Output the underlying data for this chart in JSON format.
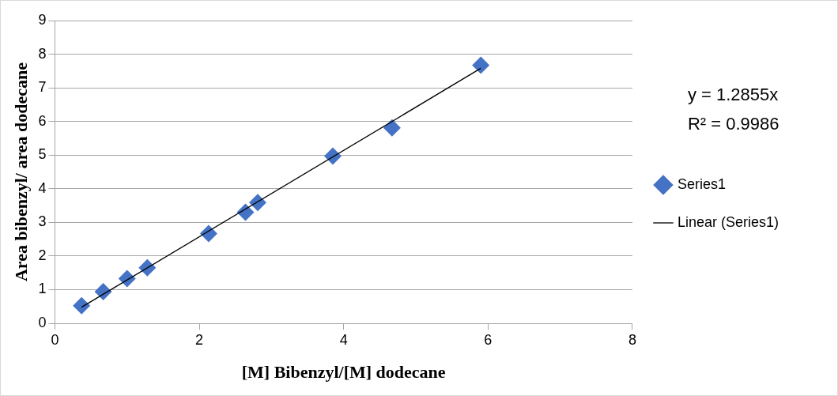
{
  "chart_data": {
    "type": "scatter",
    "xlabel": "[M] Bibenzyl/[M] dodecane",
    "ylabel": "Area bibenzyl/ area dodecane",
    "xlim": [
      0,
      8
    ],
    "xticks": [
      0,
      2,
      4,
      6,
      8
    ],
    "ylim": [
      0,
      9
    ],
    "yticks": [
      0,
      1,
      2,
      3,
      4,
      5,
      6,
      7,
      8,
      9
    ],
    "grid": "y",
    "legend": "right",
    "series": [
      {
        "name": "Series1",
        "marker": "diamond",
        "color": "#4472c4",
        "x": [
          0.37,
          0.67,
          1.0,
          1.28,
          2.13,
          2.64,
          2.81,
          3.85,
          4.67,
          5.9
        ],
        "values": [
          0.52,
          0.94,
          1.33,
          1.65,
          2.67,
          3.3,
          3.59,
          4.97,
          5.81,
          7.67
        ]
      },
      {
        "name": "Linear (Series1)",
        "type": "line",
        "marker": "none",
        "color": "#000000",
        "x": [
          0.37,
          5.9
        ],
        "values": [
          0.48,
          7.58
        ]
      }
    ],
    "annotations": [
      "y = 1.2855x",
      "R² = 0.9986"
    ]
  }
}
